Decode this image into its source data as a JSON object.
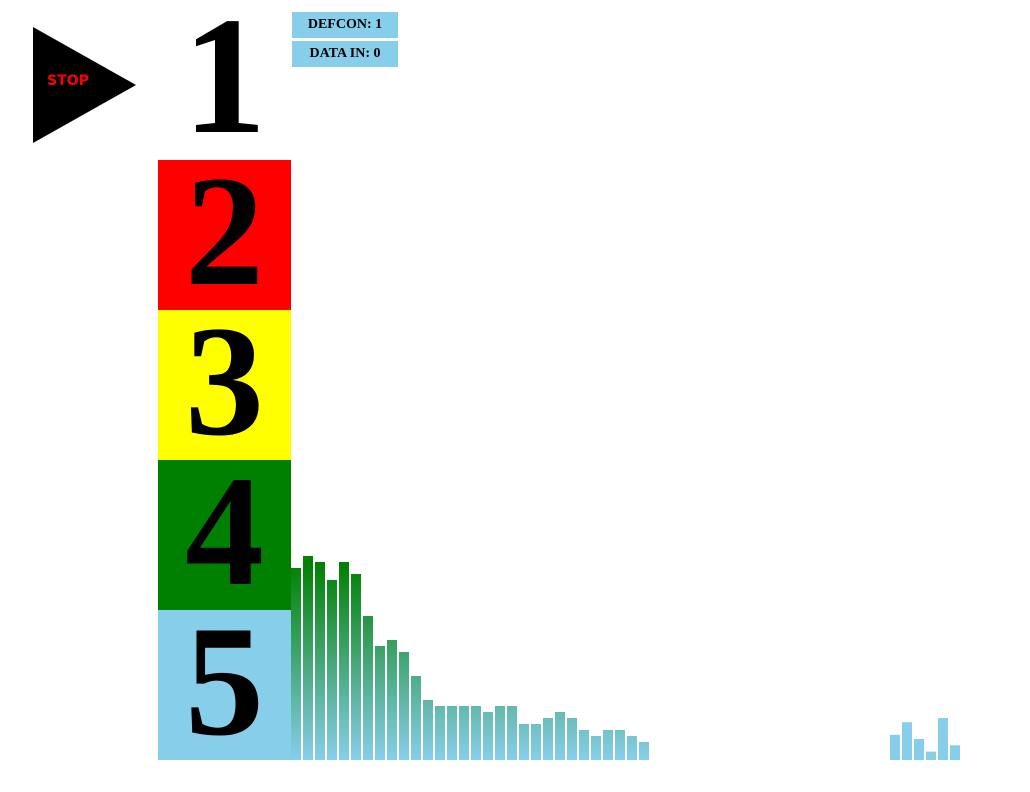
{
  "control": {
    "stop_label": "STOP"
  },
  "status": {
    "defcon": "DEFCON: 1",
    "data_in": "DATA IN: 0"
  },
  "levels": [
    {
      "label": "1",
      "color": "#ffffff"
    },
    {
      "label": "2",
      "color": "#ff0000"
    },
    {
      "label": "3",
      "color": "#ffff00"
    },
    {
      "label": "4",
      "color": "#008000"
    },
    {
      "label": "5",
      "color": "#87ceeb"
    }
  ],
  "meter": {
    "levels": [
      0.32,
      0.34,
      0.33,
      0.3,
      0.33,
      0.31,
      0.24,
      0.19,
      0.2,
      0.18,
      0.14,
      0.1,
      0.09,
      0.09,
      0.09,
      0.09,
      0.08,
      0.09,
      0.09,
      0.06,
      0.06,
      0.07,
      0.08,
      0.07,
      0.05,
      0.04,
      0.05,
      0.05,
      0.04,
      0.03,
      0.01
    ],
    "palette": [
      "#ff0000",
      "#ffff00",
      "#008000",
      "#87ceeb"
    ]
  },
  "cluster": {
    "levels": [
      0.6,
      0.9,
      0.5,
      0.2,
      1.0,
      0.35
    ],
    "color": "#87ceeb"
  }
}
